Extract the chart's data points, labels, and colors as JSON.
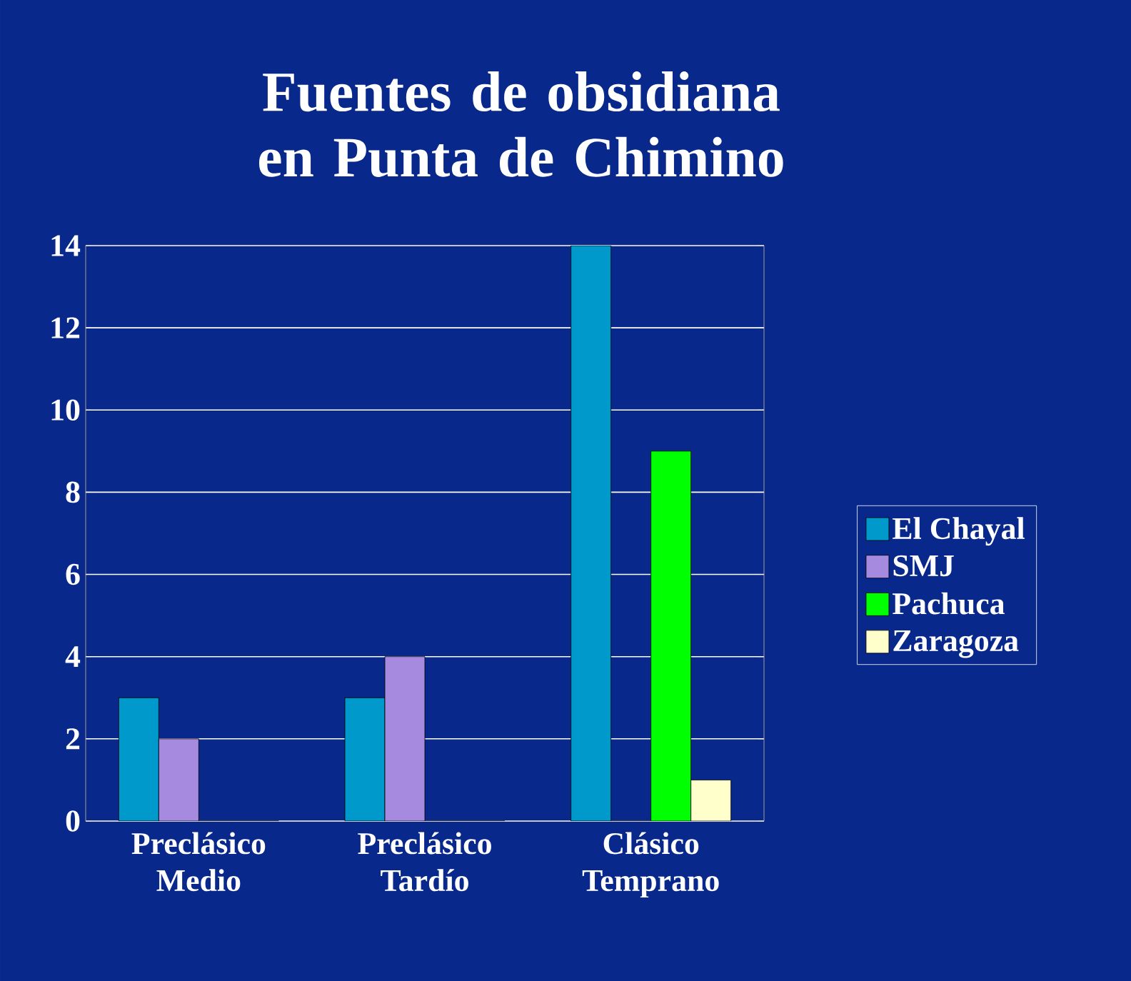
{
  "chart_data": {
    "type": "bar",
    "title": "Fuentes de obsidiana en Punta de Chimino",
    "categories": [
      "Preclásico Medio",
      "Preclásico Tardío",
      "Clásico Temprano"
    ],
    "series": [
      {
        "name": "El Chayal",
        "color": "#0099cc",
        "values": [
          3,
          3,
          14
        ]
      },
      {
        "name": "SMJ",
        "color": "#a68ae0",
        "values": [
          2,
          4,
          0
        ]
      },
      {
        "name": "Pachuca",
        "color": "#00ff00",
        "values": [
          0,
          0,
          9
        ]
      },
      {
        "name": "Zaragoza",
        "color": "#ffffcc",
        "values": [
          0,
          0,
          1
        ]
      }
    ],
    "ylim": [
      0,
      14
    ],
    "yticks": [
      0,
      2,
      4,
      6,
      8,
      10,
      12,
      14
    ],
    "grid": "y",
    "legend": "right"
  }
}
